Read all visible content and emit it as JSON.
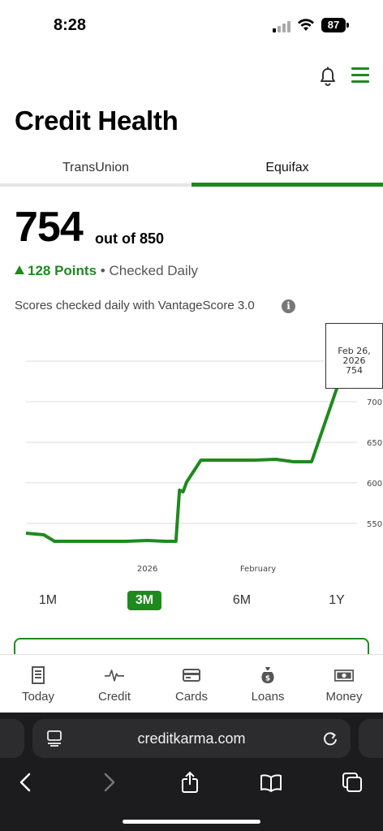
{
  "status_bar": {
    "time": "8:28",
    "battery": "87"
  },
  "header": {
    "title": "Credit Health",
    "notification_icon": "bell-icon",
    "menu_icon": "hamburger-icon"
  },
  "tabs": [
    {
      "label": "TransUnion",
      "selected": false
    },
    {
      "label": "Equifax",
      "selected": true
    }
  ],
  "score": {
    "value": "754",
    "out_of": "out of 850",
    "change": "128 Points",
    "change_direction": "up",
    "frequency": "• Checked Daily",
    "source": "Scores checked daily with VantageScore 3.0"
  },
  "chart_data": {
    "type": "line",
    "x_tick_labels": [
      "2026",
      "February"
    ],
    "y_ticks": [
      550,
      600,
      650,
      700
    ],
    "ylim": [
      500,
      760
    ],
    "grid": true,
    "color": "#1e8a1e",
    "series": [
      {
        "x": [
          "2025-11-28",
          "2025-12-03",
          "2025-12-06",
          "2025-12-16",
          "2025-12-26",
          "2026-01-01",
          "2026-01-06",
          "2026-01-09",
          "2026-01-10",
          "2026-01-11",
          "2026-01-12",
          "2026-01-16",
          "2026-01-31",
          "2026-02-06",
          "2026-02-11",
          "2026-02-16",
          "2026-02-26"
        ],
        "y": [
          538,
          536,
          528,
          528,
          528,
          529,
          528,
          528,
          591,
          589,
          601,
          628,
          628,
          629,
          626,
          626,
          754
        ]
      }
    ],
    "tooltip": {
      "date": "Feb 26, 2026",
      "value": "754"
    }
  },
  "ranges": [
    {
      "label": "1M",
      "active": false
    },
    {
      "label": "3M",
      "active": true
    },
    {
      "label": "6M",
      "active": false
    },
    {
      "label": "1Y",
      "active": false
    }
  ],
  "bottom_nav": [
    {
      "label": "Today",
      "icon": "document-icon"
    },
    {
      "label": "Credit",
      "icon": "pulse-icon"
    },
    {
      "label": "Cards",
      "icon": "card-icon"
    },
    {
      "label": "Loans",
      "icon": "money-bag-icon"
    },
    {
      "label": "Money",
      "icon": "cash-icon"
    }
  ],
  "browser": {
    "url": "creditkarma.com"
  }
}
